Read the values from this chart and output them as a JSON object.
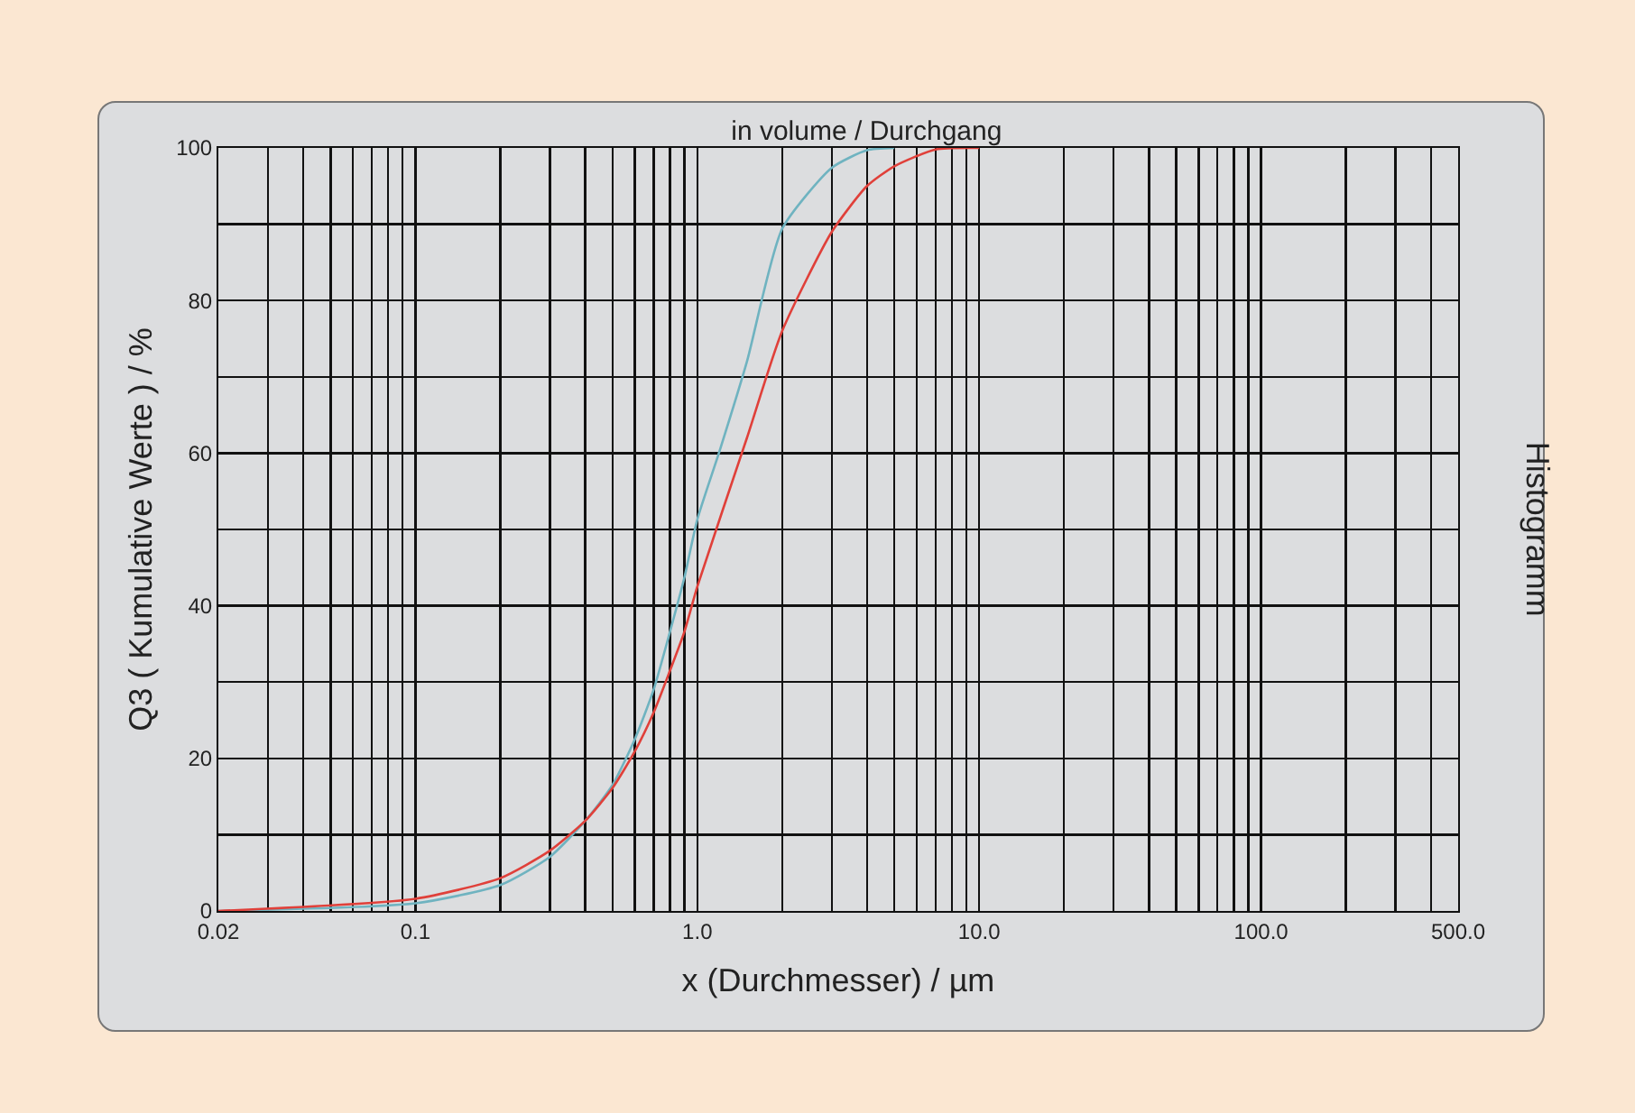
{
  "chart_data": {
    "type": "line",
    "title": "in volume / Durchgang",
    "xlabel": "x (Durchmesser) / µm",
    "ylabel": "Q3 ( Kumulative Werte ) / %",
    "y2label": "Histogramm",
    "log": "x",
    "grid": true,
    "marker": "none",
    "line_style": "solid",
    "xlim": [
      0.02,
      500
    ],
    "ylim": [
      0,
      100
    ],
    "xticks": [
      {
        "value": 0.02,
        "label": "0.02"
      },
      {
        "value": 0.03,
        "label": null
      },
      {
        "value": 0.04,
        "label": null
      },
      {
        "value": 0.05,
        "label": null
      },
      {
        "value": 0.06,
        "label": null
      },
      {
        "value": 0.07,
        "label": null
      },
      {
        "value": 0.08,
        "label": null
      },
      {
        "value": 0.09,
        "label": null
      },
      {
        "value": 0.1,
        "label": "0.1"
      },
      {
        "value": 0.2,
        "label": null
      },
      {
        "value": 0.3,
        "label": null
      },
      {
        "value": 0.4,
        "label": null
      },
      {
        "value": 0.5,
        "label": null
      },
      {
        "value": 0.6,
        "label": null
      },
      {
        "value": 0.7,
        "label": null
      },
      {
        "value": 0.8,
        "label": null
      },
      {
        "value": 0.9,
        "label": null
      },
      {
        "value": 1,
        "label": "1.0"
      },
      {
        "value": 2,
        "label": null
      },
      {
        "value": 3,
        "label": null
      },
      {
        "value": 4,
        "label": null
      },
      {
        "value": 5,
        "label": null
      },
      {
        "value": 6,
        "label": null
      },
      {
        "value": 7,
        "label": null
      },
      {
        "value": 8,
        "label": null
      },
      {
        "value": 9,
        "label": null
      },
      {
        "value": 10,
        "label": "10.0"
      },
      {
        "value": 20,
        "label": null
      },
      {
        "value": 30,
        "label": null
      },
      {
        "value": 40,
        "label": null
      },
      {
        "value": 50,
        "label": null
      },
      {
        "value": 60,
        "label": null
      },
      {
        "value": 70,
        "label": null
      },
      {
        "value": 80,
        "label": null
      },
      {
        "value": 90,
        "label": null
      },
      {
        "value": 100,
        "label": "100.0"
      },
      {
        "value": 200,
        "label": null
      },
      {
        "value": 300,
        "label": null
      },
      {
        "value": 400,
        "label": null
      },
      {
        "value": 500,
        "label": "500.0"
      }
    ],
    "yticks": [
      0,
      {
        "value": 10,
        "label": null
      },
      20,
      {
        "value": 30,
        "label": null
      },
      40,
      {
        "value": 50,
        "label": null
      },
      60,
      {
        "value": 70,
        "label": null
      },
      80,
      {
        "value": 90,
        "label": null
      },
      100
    ],
    "series": [
      {
        "color": "#6fb3c0",
        "x": [
          0.02,
          0.1,
          0.2,
          0.3,
          0.4,
          0.5,
          0.6,
          0.7,
          0.8,
          0.9,
          1,
          1.2,
          1.5,
          2,
          3,
          4,
          5
        ],
        "values": [
          0,
          1,
          3.4,
          7.1,
          11.8,
          16.5,
          22.5,
          29,
          36.6,
          43.7,
          51.3,
          60.3,
          72,
          89.4,
          97.4,
          99.7,
          100
        ]
      },
      {
        "color": "#e0403a",
        "x": [
          0.02,
          0.1,
          0.2,
          0.3,
          0.4,
          0.5,
          0.6,
          0.7,
          0.8,
          0.9,
          1,
          1.5,
          2,
          3,
          4,
          5,
          7,
          10
        ],
        "values": [
          0,
          1.6,
          4.3,
          7.9,
          11.8,
          16.1,
          20.9,
          26,
          31.5,
          36.6,
          42.5,
          62,
          76,
          89,
          95,
          97.6,
          99.8,
          100
        ]
      }
    ]
  }
}
